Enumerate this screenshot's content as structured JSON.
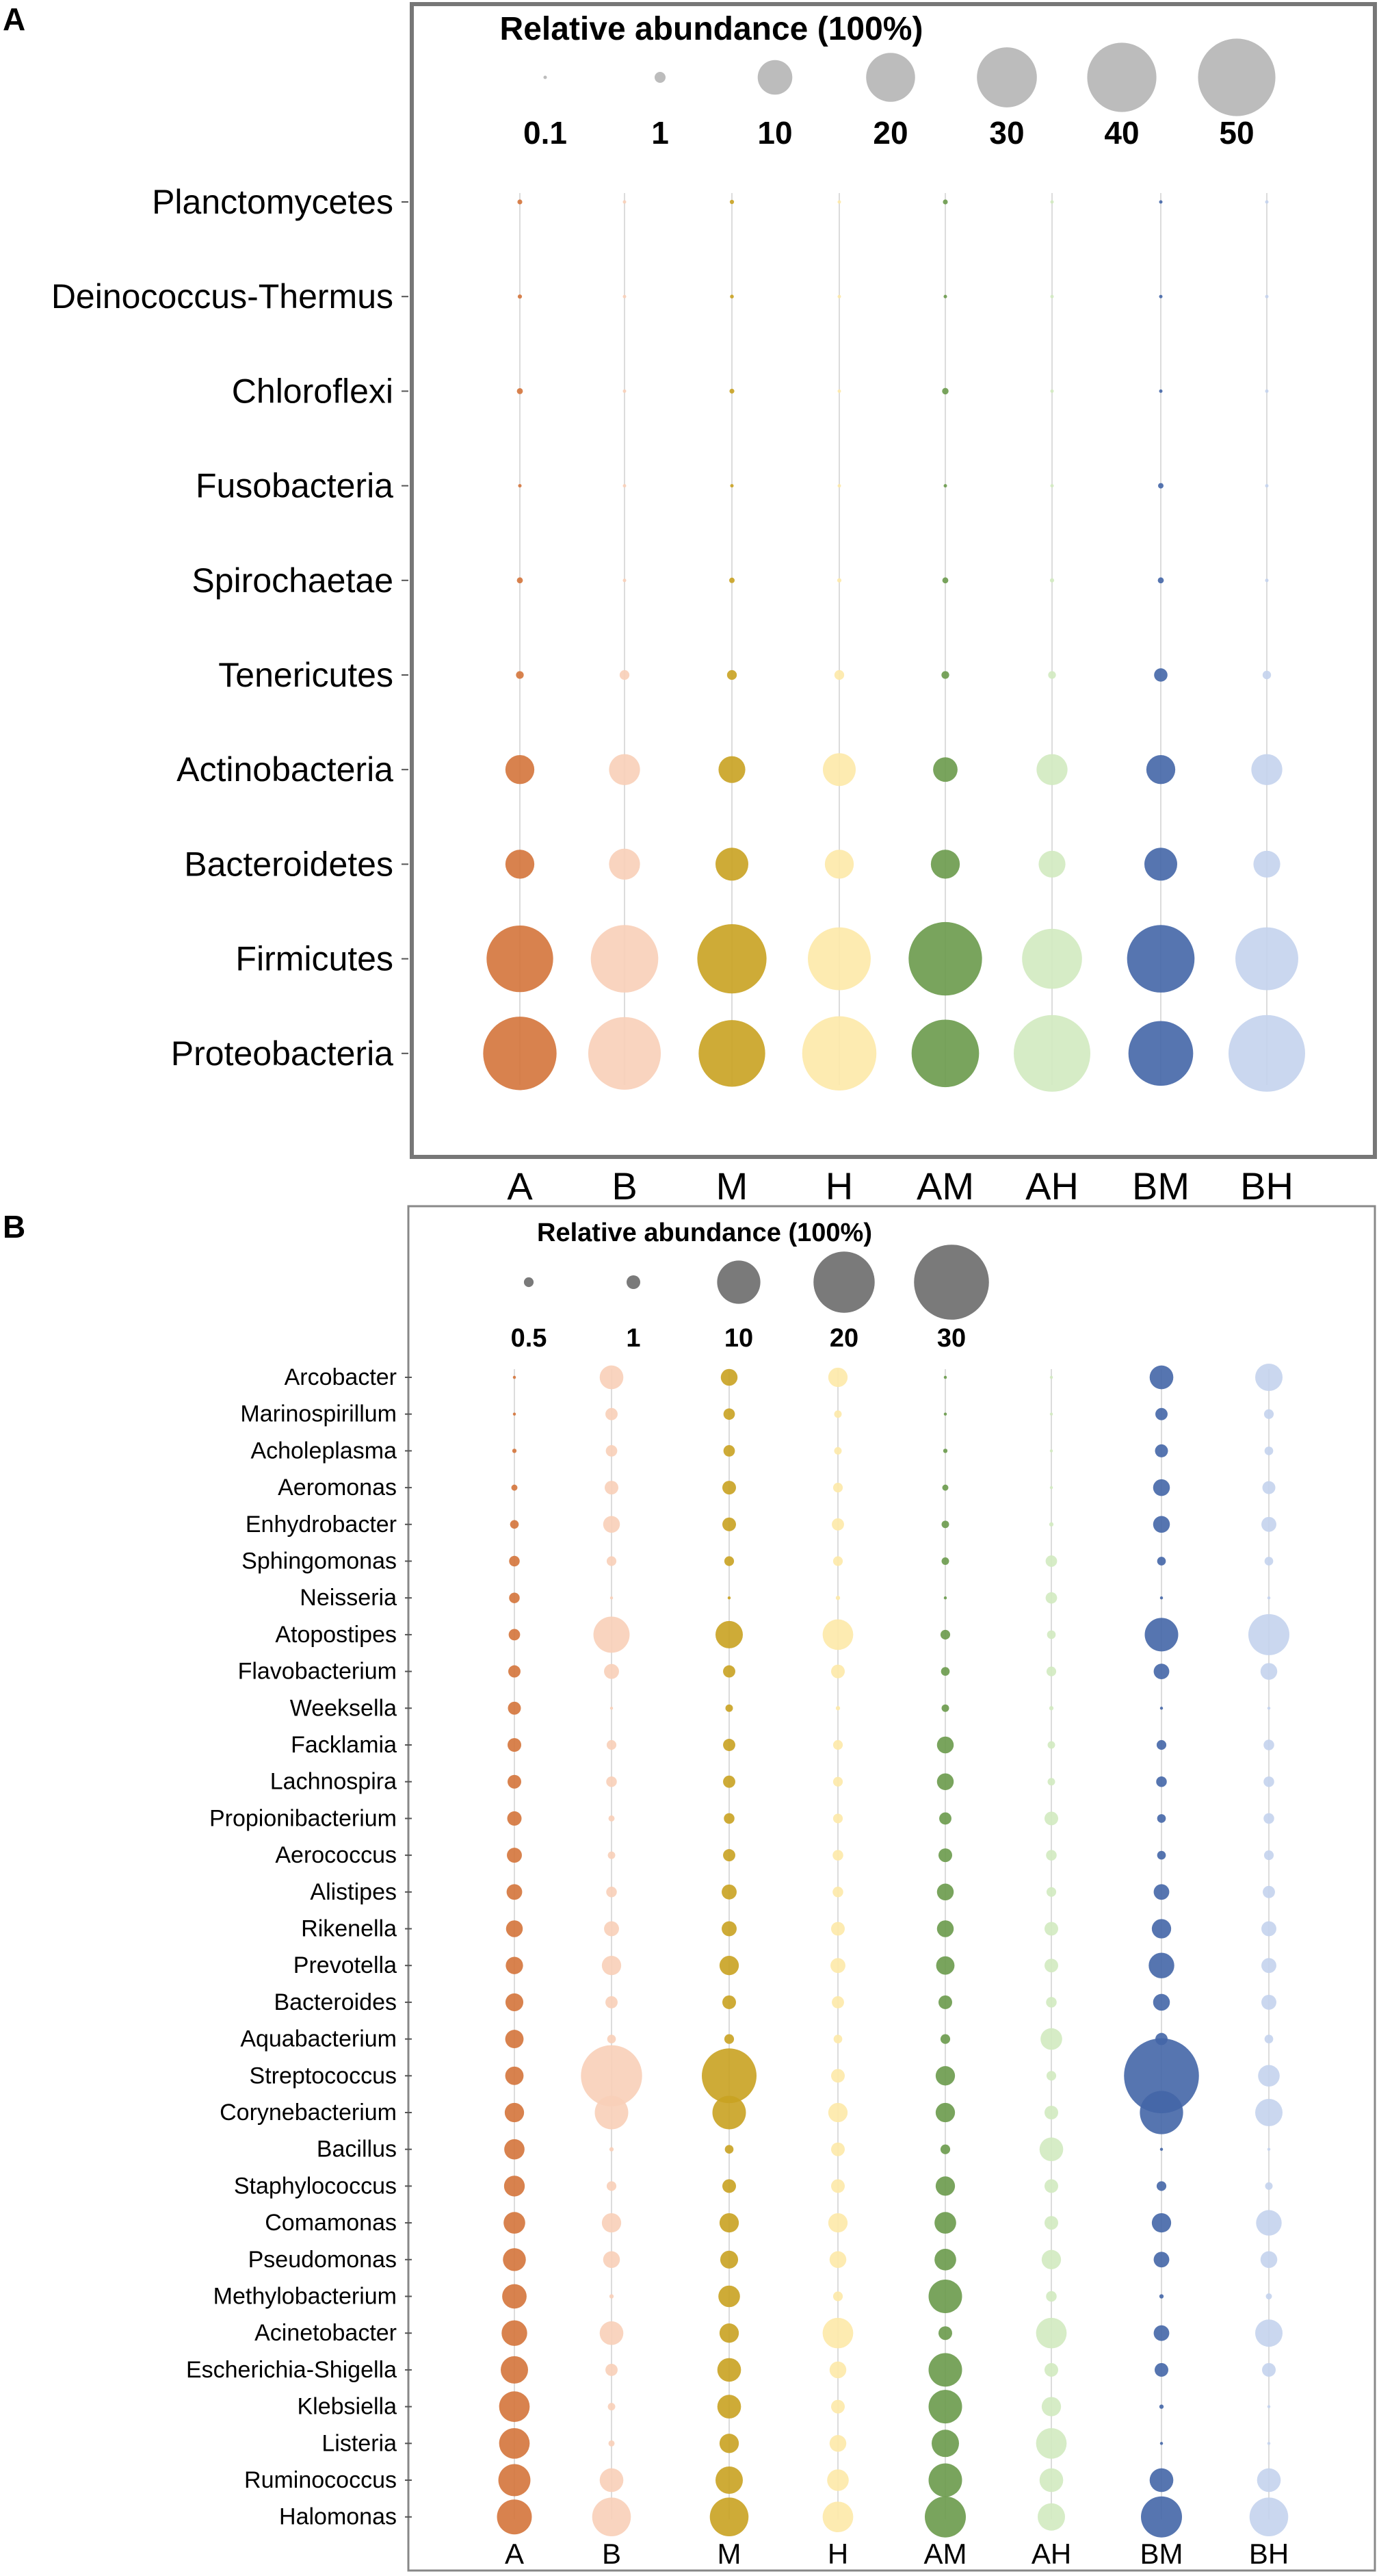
{
  "chart_data": [
    {
      "panel": "A",
      "type": "bubble",
      "title": "Relative abundance (100%)",
      "size_legend": [
        "0.1",
        "1",
        "10",
        "20",
        "30",
        "40",
        "50"
      ],
      "size_legend_values": [
        0.1,
        1,
        10,
        20,
        30,
        40,
        50
      ],
      "groups": [
        "A",
        "B",
        "M",
        "H",
        "AM",
        "AH",
        "BM",
        "BH"
      ],
      "taxa": [
        "Planctomycetes",
        "Deinococcus-Thermus",
        "Chloroflexi",
        "Fusobacteria",
        "Spirochaetae",
        "Tenericutes",
        "Actinobacteria",
        "Bacteroidetes",
        "Firmicutes",
        "Proteobacteria"
      ],
      "values": [
        [
          0.2,
          0.02,
          0.15,
          0.02,
          0.2,
          0.02,
          0.02,
          0.02
        ],
        [
          0.15,
          0.02,
          0.12,
          0.02,
          0.1,
          0.02,
          0.05,
          0.02
        ],
        [
          0.3,
          0.02,
          0.2,
          0.02,
          0.35,
          0.02,
          0.02,
          0.02
        ],
        [
          0.1,
          0.05,
          0.1,
          0.05,
          0.05,
          0.02,
          0.25,
          0.05
        ],
        [
          0.3,
          0.1,
          0.25,
          0.15,
          0.3,
          0.15,
          0.3,
          0.1
        ],
        [
          0.5,
          0.8,
          0.8,
          0.8,
          0.5,
          0.5,
          1.5,
          0.6
        ],
        [
          7,
          8,
          6,
          9,
          5,
          8,
          7,
          8
        ],
        [
          7,
          8,
          9,
          7,
          7,
          6,
          9,
          6
        ],
        [
          37,
          38,
          40,
          33,
          45,
          30,
          38,
          33
        ],
        [
          45,
          44,
          37,
          46,
          38,
          49,
          35,
          49
        ]
      ]
    },
    {
      "panel": "B",
      "type": "bubble",
      "title": "Relative abundance (100%)",
      "size_legend": [
        "0.5",
        "1",
        "10",
        "20",
        "30"
      ],
      "size_legend_values": [
        0.5,
        1,
        10,
        20,
        30
      ],
      "groups": [
        "A",
        "B",
        "M",
        "H",
        "AM",
        "AH",
        "BM",
        "BH"
      ],
      "taxa": [
        "Arcobacter",
        "Marinospirillum",
        "Acholeplasma",
        "Aeromonas",
        "Enhydrobacter",
        "Sphingomonas",
        "Neisseria",
        "Atopostipes",
        "Flavobacterium",
        "Weeksella",
        "Facklamia",
        "Lachnospira",
        "Propionibacterium",
        "Aerococcus",
        "Alistipes",
        "Rikenella",
        "Prevotella",
        "Bacteroides",
        "Aquabacterium",
        "Streptococcus",
        "Corynebacterium",
        "Bacillus",
        "Staphylococcus",
        "Comamonas",
        "Pseudomonas",
        "Methylobacterium",
        "Acinetobacter",
        "Escherichia-Shigella",
        "Klebsiella",
        "Listeria",
        "Ruminococcus",
        "Halomonas"
      ],
      "values": [
        [
          0.05,
          3,
          1.5,
          2,
          0.05,
          0.05,
          3,
          4
        ],
        [
          0.05,
          0.8,
          0.7,
          0.3,
          0.05,
          0.05,
          0.8,
          0.5
        ],
        [
          0.1,
          0.7,
          0.7,
          0.3,
          0.1,
          0.05,
          0.9,
          0.4
        ],
        [
          0.2,
          1,
          1,
          0.5,
          0.2,
          0.05,
          1.5,
          0.9
        ],
        [
          0.4,
          1.5,
          1,
          0.8,
          0.3,
          0.1,
          1.5,
          1.2
        ],
        [
          0.6,
          0.5,
          0.5,
          0.5,
          0.3,
          0.7,
          0.4,
          0.4
        ],
        [
          0.6,
          0.05,
          0.05,
          0.1,
          0.05,
          0.7,
          0.05,
          0.05
        ],
        [
          0.7,
          7,
          4,
          5,
          0.5,
          0.4,
          6,
          9
        ],
        [
          0.8,
          1.2,
          0.8,
          1,
          0.4,
          0.5,
          1.3,
          1.5
        ],
        [
          0.9,
          0.05,
          0.3,
          0.1,
          0.3,
          0.1,
          0.05,
          0.05
        ],
        [
          1,
          0.5,
          0.8,
          0.5,
          1.5,
          0.3,
          0.5,
          0.6
        ],
        [
          1,
          0.6,
          0.8,
          0.5,
          1.5,
          0.3,
          0.6,
          0.6
        ],
        [
          1.1,
          0.2,
          0.6,
          0.5,
          0.8,
          1,
          0.4,
          0.6
        ],
        [
          1.2,
          0.3,
          0.8,
          0.6,
          1,
          0.6,
          0.4,
          0.5
        ],
        [
          1.3,
          0.6,
          1.2,
          0.6,
          1.5,
          0.5,
          1.3,
          0.8
        ],
        [
          1.5,
          1.2,
          1.2,
          1,
          1.5,
          1,
          2,
          1.2
        ],
        [
          1.6,
          2,
          2,
          1.2,
          1.8,
          1,
          3.5,
          1.2
        ],
        [
          1.7,
          0.8,
          1,
          0.8,
          1,
          0.6,
          1.5,
          1.2
        ],
        [
          1.8,
          0.4,
          0.5,
          0.4,
          0.5,
          2.5,
          0.8,
          0.4
        ],
        [
          1.8,
          20,
          16,
          1,
          2,
          0.5,
          30,
          2.5
        ],
        [
          2,
          6,
          6,
          2,
          2,
          1,
          10,
          4
        ],
        [
          2.2,
          0.1,
          0.4,
          1,
          0.5,
          3,
          0.05,
          0.05
        ],
        [
          2.3,
          0.5,
          1,
          1,
          2,
          1,
          0.5,
          0.3
        ],
        [
          2.5,
          2,
          2,
          2,
          2.5,
          1,
          2,
          3.5
        ],
        [
          2.8,
          1.5,
          1.7,
          1.5,
          2.5,
          2,
          1.3,
          1.5
        ],
        [
          3.2,
          0.1,
          2.5,
          0.5,
          6,
          0.6,
          0.1,
          0.2
        ],
        [
          3.5,
          3,
          2,
          5,
          1,
          5,
          1.3,
          4
        ],
        [
          4,
          0.8,
          3,
          1.5,
          6,
          1,
          1,
          1
        ],
        [
          5,
          0.3,
          3,
          1,
          6,
          2,
          0.1,
          0.05
        ],
        [
          5,
          0.2,
          2,
          1.5,
          4,
          5,
          0.05,
          0.05
        ],
        [
          5.5,
          3,
          4,
          2.5,
          6,
          3,
          3,
          3
        ],
        [
          6.5,
          8,
          8,
          5,
          9,
          4,
          9,
          8
        ]
      ]
    }
  ],
  "colors": {
    "series": [
      "#d4743b",
      "#f8cfb8",
      "#c9a221",
      "#fde9a8",
      "#6a9a4b",
      "#d2eac0",
      "#4466a7",
      "#c4d3ed"
    ],
    "legend_a": "#bcbcbc",
    "legend_b": "#7a7a7a",
    "grid": "#dcdcdc",
    "frame_a": "#777777",
    "frame_b": "#888888",
    "text": "#000000"
  },
  "panels": {
    "a_label": "A",
    "b_label": "B"
  }
}
